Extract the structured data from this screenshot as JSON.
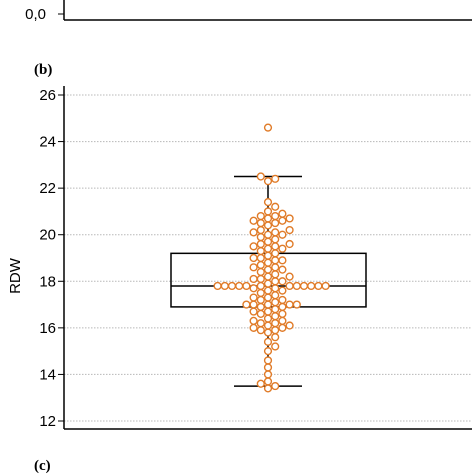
{
  "top_panel": {
    "visible_tick_label": "0,0"
  },
  "panel_b": {
    "label": "(b)"
  },
  "panel_c": {
    "label": "(c)"
  },
  "chart_data": {
    "type": "box",
    "title": "",
    "ylabel": "RDW",
    "xlabel": "",
    "ylim": [
      12,
      26
    ],
    "yticks": [
      12,
      14,
      16,
      18,
      20,
      22,
      24,
      26
    ],
    "ytick_labels": [
      "12",
      "14",
      "16",
      "18",
      "20",
      "22",
      "24",
      "26"
    ],
    "grid": "horizontal",
    "box": {
      "whisker_low": 13.5,
      "q1": 16.9,
      "median": 17.8,
      "q3": 19.2,
      "whisker_high": 22.5
    },
    "points": [
      24.6,
      22.5,
      22.3,
      22.4,
      21.4,
      21.2,
      21.0,
      20.9,
      20.8,
      20.7,
      20.6,
      20.7,
      20.5,
      20.6,
      20.8,
      20.5,
      20.4,
      20.2,
      20.1,
      20.0,
      20.0,
      20.1,
      20.2,
      19.9,
      19.8,
      19.7,
      19.6,
      19.5,
      19.6,
      19.4,
      19.5,
      19.3,
      19.4,
      19.2,
      19.1,
      19.0,
      18.9,
      19.0,
      18.8,
      18.9,
      18.7,
      18.6,
      18.5,
      18.6,
      18.4,
      18.5,
      18.3,
      18.2,
      18.1,
      18.2,
      18.0,
      18.1,
      17.9,
      18.0,
      17.8,
      17.8,
      17.8,
      17.8,
      17.8,
      17.8,
      17.8,
      17.8,
      17.8,
      17.8,
      17.8,
      17.8,
      17.7,
      17.6,
      17.7,
      17.5,
      17.6,
      17.4,
      17.3,
      17.2,
      17.3,
      17.1,
      17.2,
      17.0,
      17.0,
      17.0,
      16.9,
      17.0,
      16.9,
      17.0,
      16.8,
      16.7,
      16.6,
      16.7,
      16.5,
      16.6,
      16.4,
      16.3,
      16.2,
      16.3,
      16.1,
      16.2,
      16.0,
      15.9,
      16.0,
      15.9,
      16.1,
      15.8,
      15.6,
      15.4,
      15.2,
      15.0,
      14.6,
      14.3,
      14.0,
      13.7,
      13.6,
      13.5,
      13.4
    ],
    "point_color": "#e07b28"
  }
}
